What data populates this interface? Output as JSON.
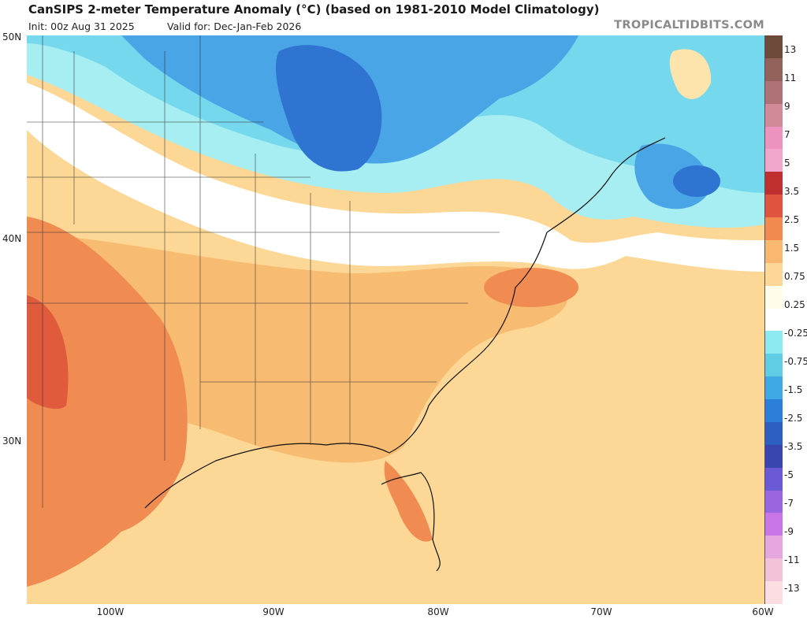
{
  "header": {
    "title": "CanSIPS 2-meter Temperature Anomaly (°C) (based on 1981-2010 Model Climatology)",
    "init": "Init: 00z Aug 31 2025",
    "valid": "Valid for: Dec-Jan-Feb 2026",
    "brand": "TROPICALTIDBITS.COM"
  },
  "axes": {
    "lat_labels": [
      "50N",
      "40N",
      "30N"
    ],
    "lon_labels": [
      "100W",
      "90W",
      "80W",
      "70W",
      "60W"
    ]
  },
  "colorbar": {
    "labels": [
      "13",
      "11",
      "9",
      "7",
      "5",
      "3.5",
      "2.5",
      "1.5",
      "0.75",
      "0.25",
      "-0.25",
      "-0.75",
      "-1.5",
      "-2.5",
      "-3.5",
      "-5",
      "-7",
      "-9",
      "-11",
      "-13"
    ],
    "swatches": [
      "#6e4a3a",
      "#93625a",
      "#b07277",
      "#d28a98",
      "#ee93c0",
      "#f3a6cc",
      "#c02f2f",
      "#e0533e",
      "#f28a50",
      "#f8b870",
      "#fcd795",
      "#fffde9",
      "#ffffff",
      "#8ceaf0",
      "#5fcde6",
      "#3fa9e6",
      "#2c7fd8",
      "#2d5fc2",
      "#3a46b0",
      "#6a5ad6",
      "#9a66e0",
      "#c875e8",
      "#e6a6e0",
      "#f4c2d8",
      "#fbdde2"
    ]
  },
  "palette": {
    "ocean_bg": "#fcd795",
    "very_cold": "#2f74d0",
    "cold": "#4aa5e6",
    "cool": "#76d8ec",
    "cool_light": "#a6eef2",
    "neutral": "#ffffff",
    "warm_light": "#fde4ad",
    "warm": "#f8bb72",
    "warmer": "#f08c52",
    "hot": "#e05a3c"
  }
}
